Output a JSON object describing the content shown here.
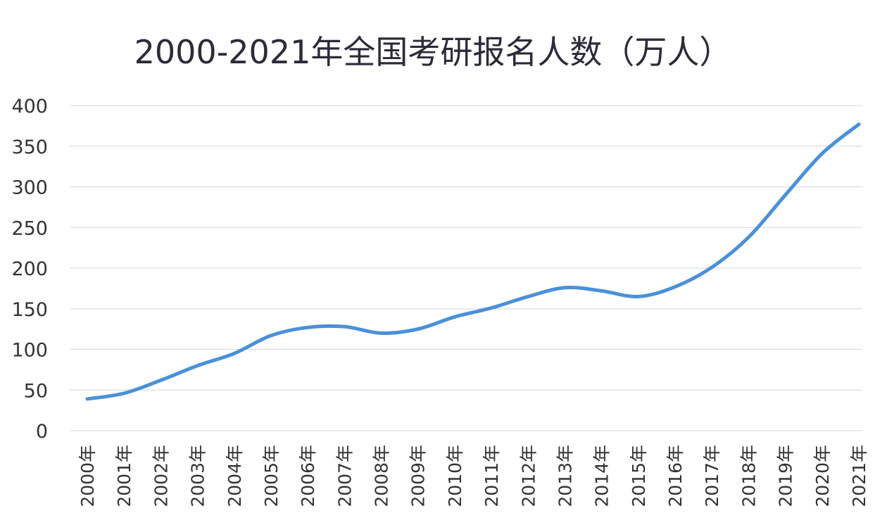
{
  "chart_data": {
    "type": "line",
    "title": "2000-2021年全国考研报名人数（万人）",
    "xlabel": "",
    "ylabel": "",
    "categories": [
      "2000年",
      "2001年",
      "2002年",
      "2003年",
      "2004年",
      "2005年",
      "2006年",
      "2007年",
      "2008年",
      "2009年",
      "2010年",
      "2011年",
      "2012年",
      "2013年",
      "2014年",
      "2015年",
      "2016年",
      "2017年",
      "2018年",
      "2019年",
      "2020年",
      "2021年"
    ],
    "series": [
      {
        "values": [
          39,
          46,
          62,
          80,
          95,
          117,
          127,
          128,
          120,
          125,
          140,
          151,
          165,
          176,
          172,
          165,
          177,
          201,
          238,
          290,
          341,
          377
        ]
      }
    ],
    "ylim": [
      0,
      400
    ],
    "yticks": [
      0,
      50,
      100,
      150,
      200,
      250,
      300,
      350,
      400
    ],
    "grid": true,
    "line_color": "#4a90d9",
    "grid_color": "#d9dde2"
  }
}
